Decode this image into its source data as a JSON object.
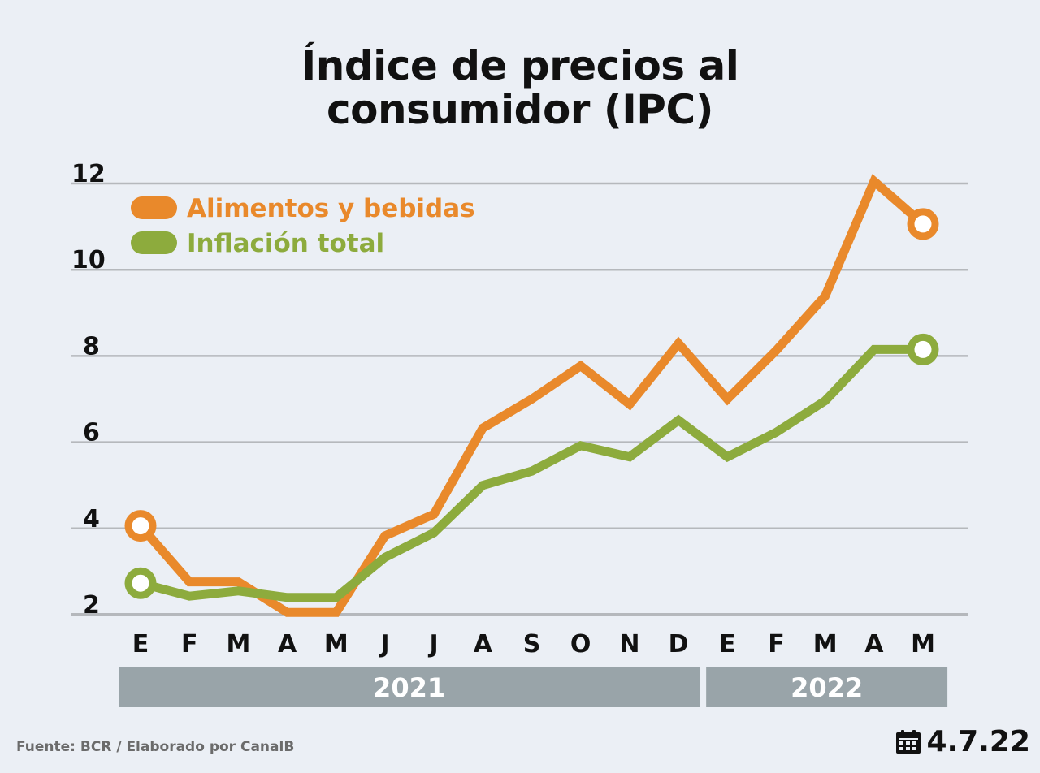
{
  "chart_data": {
    "type": "line",
    "title_lines": [
      "Índice de precios al",
      "consumidor (IPC)"
    ],
    "categories": [
      "E",
      "F",
      "M",
      "A",
      "M",
      "J",
      "J",
      "A",
      "S",
      "O",
      "N",
      "D",
      "E",
      "F",
      "M",
      "A",
      "M"
    ],
    "year_groups": [
      {
        "label": "2021",
        "start": 0,
        "end": 11
      },
      {
        "label": "2022",
        "start": 12,
        "end": 16
      }
    ],
    "yticks": [
      2,
      4,
      6,
      8,
      10,
      12
    ],
    "ylim": [
      2,
      12
    ],
    "grid": true,
    "legend_position": "top-left",
    "series": [
      {
        "name": "Alimentos y bebidas",
        "color": "#e9892b",
        "values": [
          4.06,
          2.76,
          2.76,
          2.05,
          2.05,
          3.83,
          4.33,
          6.33,
          7.0,
          7.77,
          6.88,
          8.29,
          7.0,
          8.13,
          9.39,
          12.05,
          11.06
        ],
        "end_markers": true
      },
      {
        "name": "Inflación total",
        "color": "#8dab3d",
        "values": [
          2.73,
          2.43,
          2.55,
          2.4,
          2.4,
          3.33,
          3.9,
          5.0,
          5.33,
          5.92,
          5.66,
          6.51,
          5.66,
          6.23,
          6.96,
          8.15,
          8.15
        ],
        "end_markers": true
      }
    ]
  },
  "footer": {
    "source": "Fuente: BCR / Elaborado por CanalB",
    "date": "4.7.22",
    "date_icon": "calendar-icon"
  },
  "colors": {
    "background": "#ebeff5",
    "grid": "#b5b8bc",
    "year_band": "#99a4a9"
  }
}
